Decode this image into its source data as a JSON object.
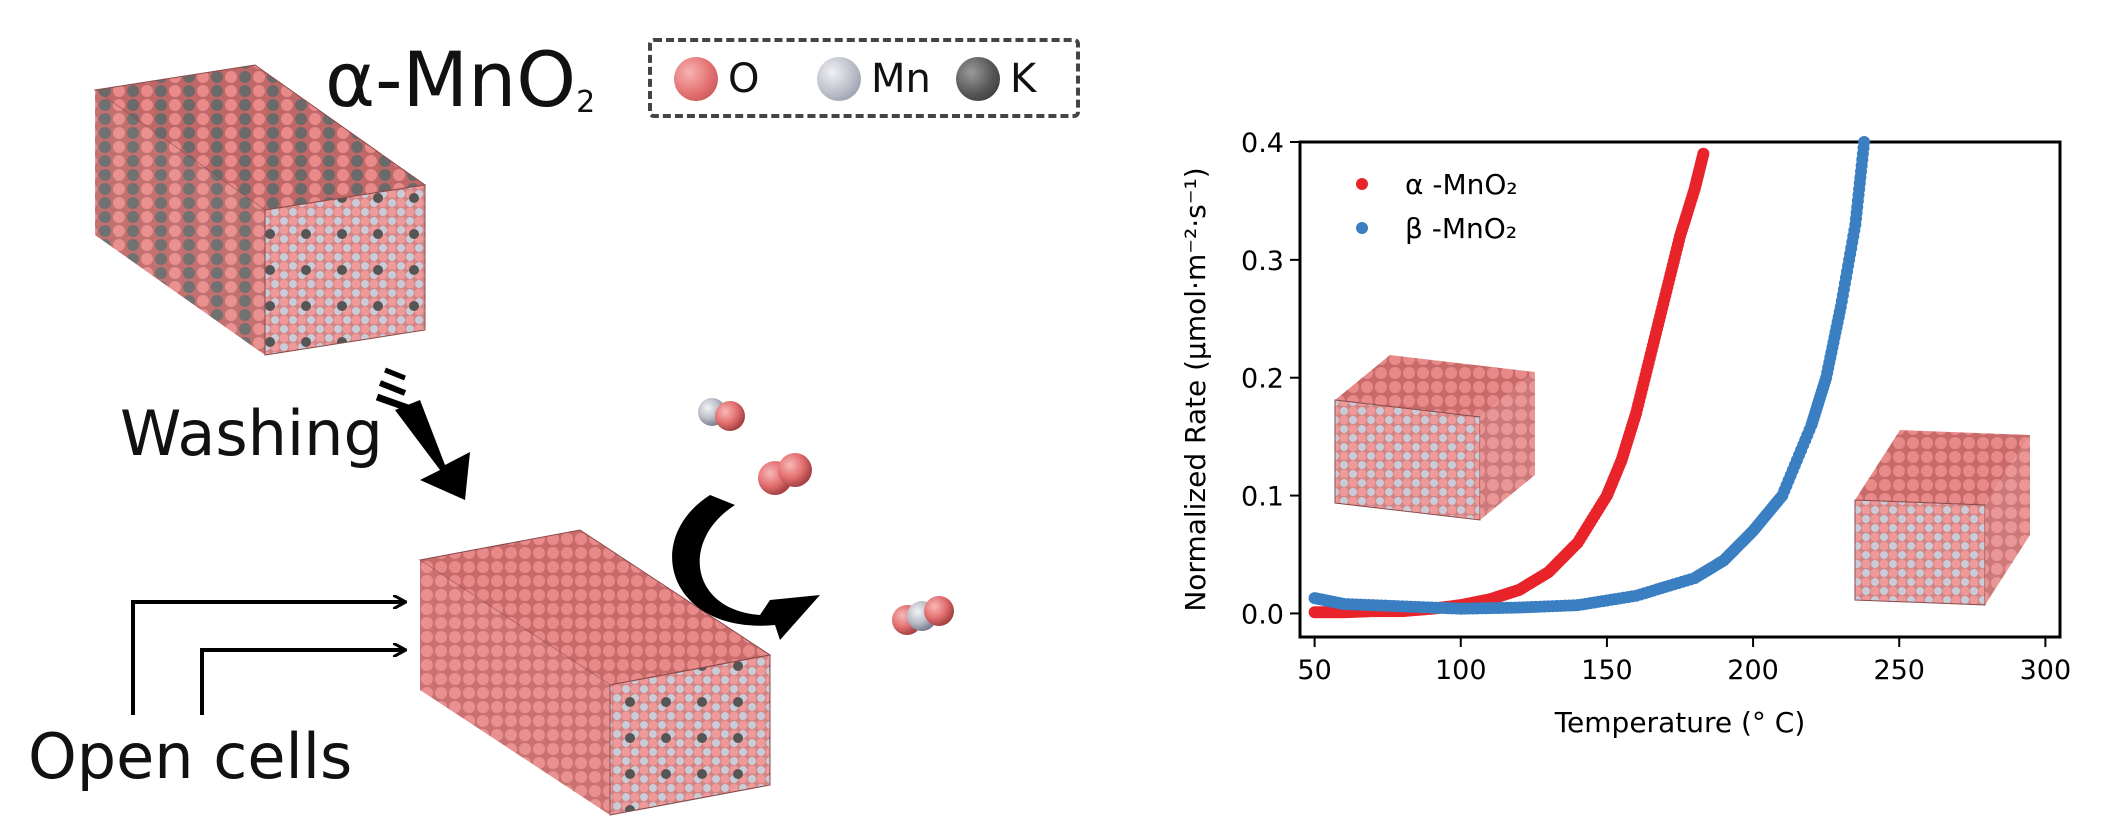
{
  "figure": {
    "title": "α-MnO",
    "title_sub": "2",
    "legend": [
      {
        "label": "O",
        "color": "#e36f6f",
        "icon": "oxygen-atom-icon"
      },
      {
        "label": "Mn",
        "color": "#b9bcc6",
        "icon": "manganese-atom-icon"
      },
      {
        "label": "K",
        "color": "#555555",
        "icon": "potassium-atom-icon"
      }
    ],
    "washing_label": "Washing",
    "open_cells_label": "Open cells"
  },
  "chart_data": {
    "type": "scatter",
    "xlabel": "Temperature (° C)",
    "ylabel": "Normalized Rate (μmol·m⁻²·s⁻¹)",
    "xlim": [
      45,
      305
    ],
    "ylim": [
      -0.02,
      0.4
    ],
    "xticks": [
      50,
      100,
      150,
      200,
      250,
      300
    ],
    "yticks": [
      0.0,
      0.1,
      0.2,
      0.3,
      0.4
    ],
    "ytick_labels": [
      "0.0",
      "0.1",
      "0.2",
      "0.3",
      "0.4"
    ],
    "legend_placement": "top-left",
    "grid": false,
    "series": [
      {
        "name": "α -MnO₂",
        "color": "#e8242a",
        "x": [
          50,
          60,
          70,
          80,
          90,
          100,
          110,
          120,
          130,
          140,
          150,
          155,
          160,
          165,
          170,
          175,
          180,
          183
        ],
        "y": [
          0.001,
          0.001,
          0.002,
          0.002,
          0.004,
          0.007,
          0.012,
          0.02,
          0.035,
          0.06,
          0.1,
          0.13,
          0.17,
          0.22,
          0.27,
          0.32,
          0.36,
          0.39
        ]
      },
      {
        "name": "β -MnO₂",
        "color": "#3a7fc1",
        "x": [
          50,
          60,
          80,
          100,
          120,
          140,
          160,
          180,
          190,
          200,
          210,
          220,
          225,
          230,
          235,
          238
        ],
        "y": [
          0.013,
          0.008,
          0.006,
          0.004,
          0.005,
          0.007,
          0.015,
          0.03,
          0.045,
          0.07,
          0.1,
          0.16,
          0.2,
          0.26,
          0.33,
          0.4
        ]
      }
    ]
  }
}
